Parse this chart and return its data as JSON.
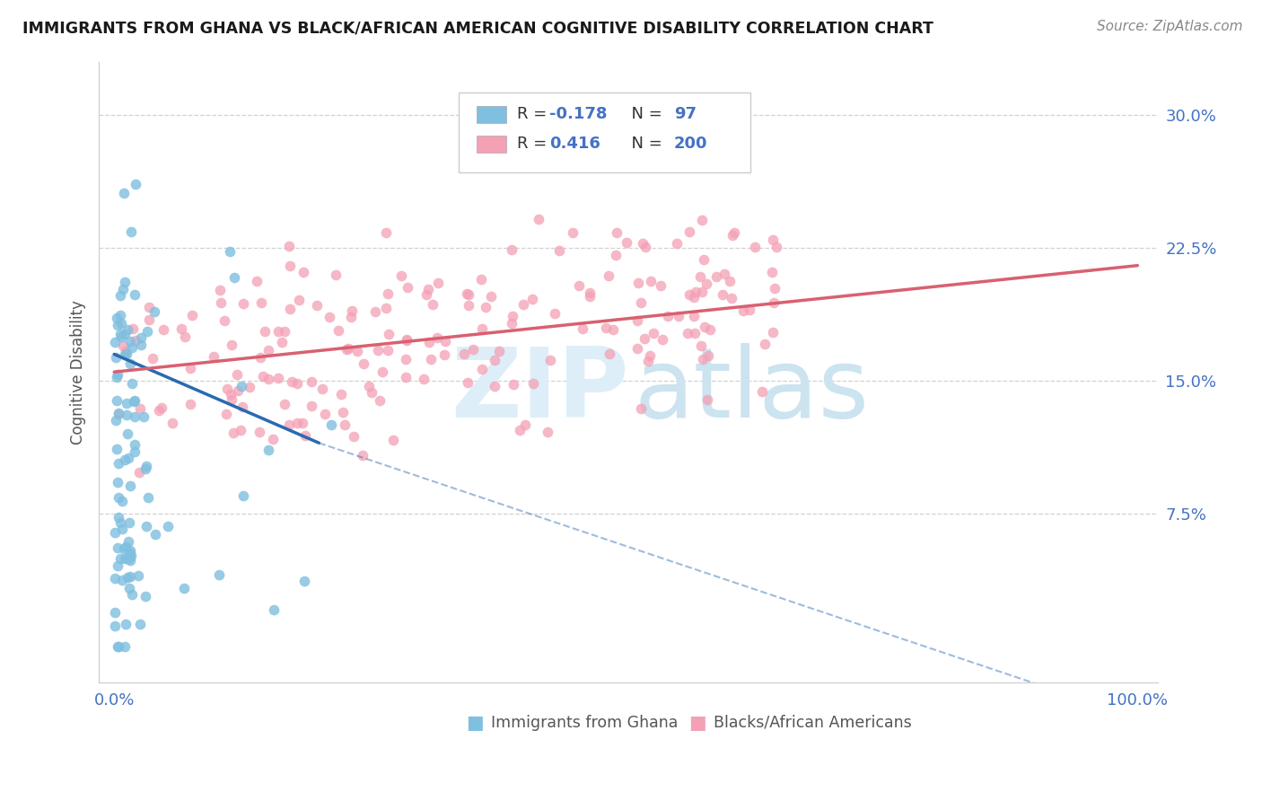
{
  "title": "IMMIGRANTS FROM GHANA VS BLACK/AFRICAN AMERICAN COGNITIVE DISABILITY CORRELATION CHART",
  "source": "Source: ZipAtlas.com",
  "ylabel": "Cognitive Disability",
  "yticks": [
    "7.5%",
    "15.0%",
    "22.5%",
    "30.0%"
  ],
  "ytick_vals": [
    0.075,
    0.15,
    0.225,
    0.3
  ],
  "ymax": 0.33,
  "ymin": -0.02,
  "xmax": 1.02,
  "xmin": -0.015,
  "R_blue": -0.178,
  "N_blue": 97,
  "R_pink": 0.416,
  "N_pink": 200,
  "blue_color": "#7fbfdf",
  "pink_color": "#f4a0b5",
  "blue_line_color": "#2a6ab0",
  "pink_line_color": "#d96070",
  "legend_label_blue": "Immigrants from Ghana",
  "legend_label_pink": "Blacks/African Americans",
  "blue_seed": 101,
  "pink_seed": 202
}
